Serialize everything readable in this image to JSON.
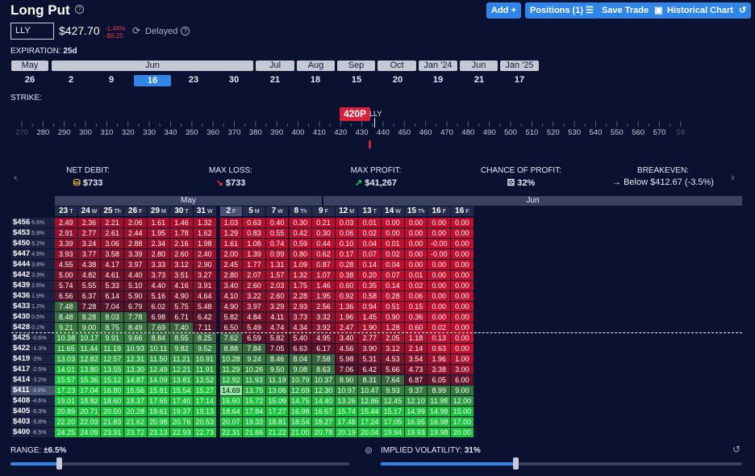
{
  "title": "Long Put",
  "header_buttons": {
    "add": "Add +",
    "positions": "Positions (1) ☰",
    "save": "Save Trade",
    "history": "Historical Chart"
  },
  "ticker": {
    "symbol": "LLY",
    "price": "$427.70",
    "change_pct": "-1.44%",
    "change_abs": "-$6.25",
    "status": "Delayed"
  },
  "expiration": {
    "label": "EXPIRATION:",
    "value": "25d"
  },
  "months": [
    {
      "label": "May",
      "x": 14,
      "w": 46
    },
    {
      "label": "Jun",
      "x": 64,
      "w": 250
    },
    {
      "label": "Jul",
      "x": 317,
      "w": 48
    },
    {
      "label": "Aug",
      "x": 368,
      "w": 47
    },
    {
      "label": "Sep",
      "x": 418,
      "w": 47
    },
    {
      "label": "Oct",
      "x": 468,
      "w": 48
    },
    {
      "label": "Jan '24",
      "x": 519,
      "w": 48
    },
    {
      "label": "Jun",
      "x": 570,
      "w": 47
    },
    {
      "label": "Jan '25",
      "x": 620,
      "w": 48
    }
  ],
  "dates": [
    "26",
    "2",
    "9",
    "16",
    "23",
    "30",
    "21",
    "18",
    "15",
    "20",
    "19",
    "21",
    "17"
  ],
  "selected_date": "16",
  "strike": {
    "label": "STRIKE:",
    "selected": "420P",
    "underlying": "LLY",
    "ticks": [
      "270",
      "280",
      "290",
      "300",
      "310",
      "320",
      "330",
      "340",
      "350",
      "360",
      "370",
      "380",
      "390",
      "400",
      "410",
      "420",
      "430",
      "440",
      "450",
      "460",
      "470",
      "480",
      "490",
      "500",
      "510",
      "520",
      "530",
      "540",
      "550",
      "560",
      "570",
      "58"
    ]
  },
  "stats": {
    "net_debit": {
      "label": "NET DEBIT:",
      "value": "$733"
    },
    "max_loss": {
      "label": "MAX LOSS:",
      "value": "$733"
    },
    "max_profit": {
      "label": "MAX PROFIT:",
      "value": "$41,267"
    },
    "chance": {
      "label": "CHANCE OF PROFIT:",
      "value": "32%"
    },
    "breakeven": {
      "label": "BREAKEVEN:",
      "value": "Below $412.67 (-3.5%)"
    }
  },
  "table": {
    "month_may": "May",
    "month_jun": "Jun",
    "cols": [
      {
        "d": "23",
        "w": "T"
      },
      {
        "d": "24",
        "w": "W"
      },
      {
        "d": "25",
        "w": "Th"
      },
      {
        "d": "26",
        "w": "F"
      },
      {
        "d": "29",
        "w": "M"
      },
      {
        "d": "30",
        "w": "T"
      },
      {
        "d": "31",
        "w": "W"
      },
      {
        "d": "2",
        "w": "F"
      },
      {
        "d": "5",
        "w": "M"
      },
      {
        "d": "7",
        "w": "W"
      },
      {
        "d": "8",
        "w": "Th"
      },
      {
        "d": "9",
        "w": "F"
      },
      {
        "d": "12",
        "w": "M"
      },
      {
        "d": "13",
        "w": "T"
      },
      {
        "d": "14",
        "w": "W"
      },
      {
        "d": "15",
        "w": "Th"
      },
      {
        "d": "16",
        "w": "F"
      },
      {
        "d": "16",
        "w": "F"
      }
    ],
    "rows": [
      {
        "s": "$456",
        "p": "6.6%",
        "v": [
          "2.49",
          "2.36",
          "2.21",
          "2.06",
          "1.61",
          "1.46",
          "1.32",
          "1.03",
          "0.63",
          "0.40",
          "0.30",
          "0.21",
          "0.03",
          "0.01",
          "0.00",
          "0.00",
          "0.00",
          "0.00"
        ]
      },
      {
        "s": "$453",
        "p": "5.9%",
        "v": [
          "2.91",
          "2.77",
          "2.61",
          "2.44",
          "1.95",
          "1.78",
          "1.62",
          "1.29",
          "0.83",
          "0.55",
          "0.42",
          "0.30",
          "0.06",
          "0.02",
          "0.00",
          "0.00",
          "0.00",
          "0.00"
        ]
      },
      {
        "s": "$450",
        "p": "5.2%",
        "v": [
          "3.39",
          "3.24",
          "3.06",
          "2.88",
          "2.34",
          "2.16",
          "1.98",
          "1.61",
          "1.08",
          "0.74",
          "0.59",
          "0.44",
          "0.10",
          "0.04",
          "0.01",
          "0.00",
          "-0.00",
          "0.00"
        ]
      },
      {
        "s": "$447",
        "p": "4.5%",
        "v": [
          "3.93",
          "3.77",
          "3.58",
          "3.39",
          "2.80",
          "2.60",
          "2.40",
          "2.00",
          "1.39",
          "0.99",
          "0.80",
          "0.62",
          "0.17",
          "0.07",
          "0.02",
          "0.00",
          "-0.00",
          "0.00"
        ]
      },
      {
        "s": "$444",
        "p": "3.8%",
        "v": [
          "4.55",
          "4.38",
          "4.17",
          "3.97",
          "3.33",
          "3.12",
          "2.90",
          "2.45",
          "1.77",
          "1.31",
          "1.09",
          "0.87",
          "0.28",
          "0.14",
          "0.04",
          "0.00",
          "0.00",
          "0.00"
        ]
      },
      {
        "s": "$442",
        "p": "3.3%",
        "v": [
          "5.00",
          "4.82",
          "4.61",
          "4.40",
          "3.73",
          "3.51",
          "3.27",
          "2.80",
          "2.07",
          "1.57",
          "1.32",
          "1.07",
          "0.38",
          "0.20",
          "0.07",
          "0.01",
          "0.00",
          "0.00"
        ]
      },
      {
        "s": "$439",
        "p": "2.6%",
        "v": [
          "5.74",
          "5.55",
          "5.33",
          "5.10",
          "4.40",
          "4.16",
          "3.91",
          "3.40",
          "2.60",
          "2.03",
          "1.75",
          "1.46",
          "0.60",
          "0.35",
          "0.14",
          "0.02",
          "0.00",
          "0.00"
        ]
      },
      {
        "s": "$436",
        "p": "1.9%",
        "v": [
          "6.56",
          "6.37",
          "6.14",
          "5.90",
          "5.16",
          "4.90",
          "4.64",
          "4.10",
          "3.22",
          "2.60",
          "2.28",
          "1.95",
          "0.92",
          "0.58",
          "0.28",
          "0.06",
          "0.00",
          "0.00"
        ]
      },
      {
        "s": "$433",
        "p": "1.2%",
        "v": [
          "7.48",
          "7.28",
          "7.04",
          "6.79",
          "6.02",
          "5.75",
          "5.48",
          "4.90",
          "3.97",
          "3.29",
          "2.93",
          "2.56",
          "1.36",
          "0.94",
          "0.51",
          "0.15",
          "0.00",
          "0.00"
        ]
      },
      {
        "s": "$430",
        "p": "0.5%",
        "v": [
          "8.48",
          "8.28",
          "8.03",
          "7.78",
          "6.98",
          "6.71",
          "6.42",
          "5.82",
          "4.84",
          "4.11",
          "3.73",
          "3.32",
          "1.96",
          "1.45",
          "0.90",
          "0.36",
          "0.00",
          "0.00"
        ]
      },
      {
        "s": "$428",
        "p": "0.1%",
        "v": [
          "9.21",
          "9.00",
          "8.75",
          "8.49",
          "7.69",
          "7.40",
          "7.11",
          "6.50",
          "5.49",
          "4.74",
          "4.34",
          "3.92",
          "2.47",
          "1.90",
          "1.28",
          "0.60",
          "0.02",
          "0.00"
        ]
      },
      {
        "s": "$425",
        "p": "-0.6%",
        "v": [
          "10.38",
          "10.17",
          "9.91",
          "9.66",
          "8.84",
          "8.55",
          "8.25",
          "7.62",
          "6.59",
          "5.82",
          "5.40",
          "4.95",
          "3.40",
          "2.77",
          "2.05",
          "1.18",
          "0.13",
          "0.00"
        ]
      },
      {
        "s": "$422",
        "p": "-1.3%",
        "v": [
          "11.65",
          "11.44",
          "11.19",
          "10.93",
          "10.11",
          "9.82",
          "9.52",
          "8.88",
          "7.84",
          "7.05",
          "6.63",
          "6.17",
          "4.56",
          "3.90",
          "3.12",
          "2.14",
          "0.63",
          "0.00"
        ]
      },
      {
        "s": "$419",
        "p": "-2%",
        "v": [
          "13.03",
          "12.82",
          "12.57",
          "12.31",
          "11.50",
          "11.21",
          "10.91",
          "10.28",
          "9.24",
          "8.46",
          "8.04",
          "7.58",
          "5.98",
          "5.31",
          "4.53",
          "3.54",
          "1.96",
          "1.00"
        ]
      },
      {
        "s": "$417",
        "p": "-2.5%",
        "v": [
          "14.01",
          "13.80",
          "13.55",
          "13.30",
          "12.49",
          "12.21",
          "11.91",
          "11.29",
          "10.26",
          "9.50",
          "9.08",
          "8.63",
          "7.06",
          "6.42",
          "5.66",
          "4.73",
          "3.38",
          "3.00"
        ]
      },
      {
        "s": "$414",
        "p": "-3.2%",
        "v": [
          "15.57",
          "15.36",
          "15.12",
          "14.87",
          "14.09",
          "13.81",
          "13.52",
          "12.92",
          "11.93",
          "11.19",
          "10.79",
          "10.37",
          "8.90",
          "8.31",
          "7.64",
          "6.87",
          "6.05",
          "6.00"
        ]
      },
      {
        "s": "$411",
        "p": "-3.9%",
        "v": [
          "17.23",
          "17.04",
          "16.80",
          "16.56",
          "15.81",
          "15.54",
          "15.27",
          "14.69",
          "13.75",
          "13.06",
          "12.69",
          "12.30",
          "10.97",
          "10.47",
          "9.93",
          "9.37",
          "8.99",
          "9.00"
        ]
      },
      {
        "s": "$408",
        "p": "-4.6%",
        "v": [
          "19.01",
          "18.82",
          "18.60",
          "18.37",
          "17.65",
          "17.40",
          "17.14",
          "16.60",
          "15.72",
          "15.09",
          "14.75",
          "14.40",
          "13.26",
          "12.86",
          "12.45",
          "12.10",
          "11.98",
          "12.00"
        ]
      },
      {
        "s": "$405",
        "p": "-5.3%",
        "v": [
          "20.89",
          "20.71",
          "20.50",
          "20.28",
          "19.61",
          "19.37",
          "19.13",
          "18.64",
          "17.84",
          "17.27",
          "16.98",
          "16.67",
          "15.74",
          "15.44",
          "15.17",
          "14.99",
          "14.98",
          "15.00"
        ]
      },
      {
        "s": "$403",
        "p": "-5.8%",
        "v": [
          "22.20",
          "22.03",
          "21.83",
          "21.62",
          "20.98",
          "20.76",
          "20.53",
          "20.07",
          "19.33",
          "18.81",
          "18.54",
          "18.27",
          "17.48",
          "17.24",
          "17.05",
          "16.95",
          "16.98",
          "17.00"
        ]
      },
      {
        "s": "$400",
        "p": "-6.5%",
        "v": [
          "24.25",
          "24.09",
          "23.91",
          "23.72",
          "23.13",
          "22.93",
          "22.73",
          "22.31",
          "21.66",
          "21.22",
          "21.00",
          "20.78",
          "20.19",
          "20.04",
          "19.94",
          "19.93",
          "19.98",
          "20.00"
        ]
      }
    ]
  },
  "range": {
    "label": "RANGE:",
    "value": "±6.5%"
  },
  "iv": {
    "label": "IMPLIED VOLATILITY:",
    "value": "31%"
  },
  "colors": {
    "loss": "#c0102e",
    "profit": "#18c23a",
    "accent": "#2f86e8",
    "bg": "#0b1130"
  }
}
